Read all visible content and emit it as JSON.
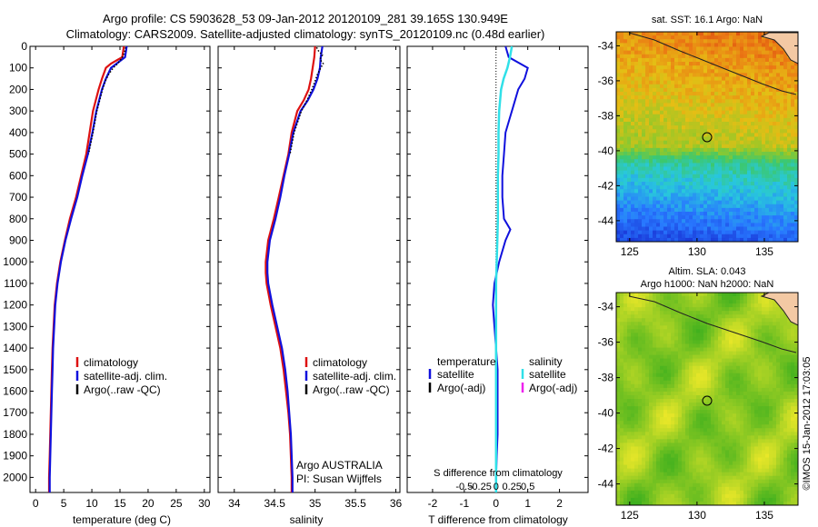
{
  "header": {
    "title_line1": "Argo profile: CS 5903628_53 09-Jan-2012 20120109_281 39.165S 130.949E",
    "title_line2": "Climatology: CARS2009. Satellite-adjusted climatology: synTS_20120109.nc (0.48d earlier)"
  },
  "colors": {
    "climatology": "#dd1111",
    "satellite": "#1010dd",
    "argo": "#000000",
    "sat_salinity": "#30e0e8",
    "argo_adj_salinity": "#ee22ee"
  },
  "depth_axis": {
    "ticks": [
      "0",
      "100",
      "200",
      "300",
      "400",
      "500",
      "600",
      "700",
      "800",
      "900",
      "1000",
      "1100",
      "1200",
      "1300",
      "1400",
      "1500",
      "1600",
      "1700",
      "1800",
      "1900",
      "2000"
    ],
    "range": [
      0,
      2070
    ]
  },
  "panels": {
    "temperature": {
      "xlabel": "temperature (deg C)",
      "xticks": [
        "0",
        "5",
        "10",
        "15",
        "20",
        "25",
        "30"
      ],
      "legend": [
        "climatology",
        "satellite-adj. clim.",
        "Argo(..raw -QC)"
      ]
    },
    "salinity": {
      "xlabel": "salinity",
      "xticks": [
        "34",
        "34.5",
        "35",
        "35.5",
        "36"
      ],
      "legend": [
        "climatology",
        "satellite-adj. clim.",
        "Argo(..raw -QC)"
      ],
      "annotation1": "Argo AUSTRALIA",
      "annotation2": "PI: Susan Wijffels"
    },
    "difference": {
      "xlabel": "T difference from climatology",
      "xticks": [
        "-2",
        "-1",
        "0",
        "1",
        "2"
      ],
      "top_label": "S difference from climatology",
      "top_ticks": [
        "-0.5",
        "-0.25",
        "0",
        "0.25",
        "0.5"
      ],
      "legend_temp_head": "temperature",
      "legend_sal_head": "salinity",
      "legend_temp": [
        "satellite",
        "Argo(-adj)"
      ],
      "legend_sal": [
        "satellite",
        "Argo(-adj)"
      ]
    }
  },
  "maps": {
    "sst": {
      "title": "sat. SST: 16.1 Argo: NaN",
      "yticks": [
        "-34",
        "-36",
        "-38",
        "-40",
        "-42",
        "-44"
      ],
      "xticks": [
        "125",
        "130",
        "135"
      ]
    },
    "sla": {
      "title1": "Altim. SLA: 0.043",
      "title2": "Argo h1000: NaN h2000: NaN",
      "yticks": [
        "-34",
        "-36",
        "-38",
        "-40",
        "-42",
        "-44"
      ],
      "xticks": [
        "125",
        "130",
        "135"
      ]
    },
    "float_position": {
      "lon": 130.949,
      "lat": -39.165
    }
  },
  "credit": "©IMOS 15-Jan-2012 17:03:05",
  "chart_data": [
    {
      "type": "line",
      "panel": "temperature",
      "xlabel": "temperature (deg C)",
      "ylabel": "",
      "xlim": [
        -1,
        31
      ],
      "ylim": [
        2070,
        0
      ],
      "series": [
        {
          "name": "climatology",
          "depth": [
            0,
            50,
            80,
            100,
            150,
            200,
            300,
            400,
            500,
            600,
            700,
            800,
            900,
            1000,
            1100,
            1200,
            1300,
            1400,
            1500,
            1600,
            1700,
            1800,
            1900,
            2000,
            2070
          ],
          "values": [
            15.7,
            15.4,
            13.4,
            12.5,
            11.8,
            11.2,
            10.2,
            9.6,
            9.0,
            8.1,
            7.2,
            6.1,
            5.2,
            4.4,
            3.8,
            3.4,
            3.2,
            3.0,
            2.9,
            2.8,
            2.7,
            2.6,
            2.5,
            2.4,
            2.4
          ]
        },
        {
          "name": "satellite-adj. clim.",
          "depth": [
            0,
            50,
            80,
            100,
            150,
            200,
            300,
            400,
            500,
            600,
            700,
            800,
            900,
            1000,
            1100,
            1200,
            1300,
            1400,
            1500,
            1600,
            1700,
            1800,
            1900,
            2000,
            2070
          ],
          "values": [
            16.2,
            15.9,
            14.4,
            13.4,
            12.5,
            11.8,
            10.8,
            10.1,
            9.3,
            8.3,
            7.4,
            6.3,
            5.3,
            4.5,
            3.9,
            3.5,
            3.3,
            3.1,
            3.0,
            2.9,
            2.8,
            2.7,
            2.6,
            2.5,
            2.5
          ]
        },
        {
          "name": "Argo(..raw -QC)",
          "depth": [
            5,
            20,
            40,
            60,
            80,
            100,
            130,
            160,
            200,
            250,
            300,
            400,
            500
          ],
          "values": [
            16.0,
            15.9,
            15.6,
            15.2,
            14.6,
            13.8,
            13.0,
            12.4,
            11.9,
            11.4,
            10.9,
            10.2,
            9.4
          ]
        }
      ]
    },
    {
      "type": "line",
      "panel": "salinity",
      "xlabel": "salinity",
      "ylabel": "",
      "xlim": [
        33.8,
        36.05
      ],
      "ylim": [
        2070,
        0
      ],
      "series": [
        {
          "name": "climatology",
          "depth": [
            0,
            50,
            100,
            150,
            200,
            250,
            300,
            400,
            500,
            600,
            700,
            800,
            900,
            1000,
            1050,
            1100,
            1200,
            1300,
            1400,
            1500,
            1600,
            1700,
            1800,
            1900,
            2000,
            2070
          ],
          "values": [
            35.0,
            34.99,
            34.97,
            34.95,
            34.92,
            34.86,
            34.78,
            34.71,
            34.67,
            34.61,
            34.55,
            34.49,
            34.42,
            34.39,
            34.39,
            34.4,
            34.45,
            34.51,
            34.57,
            34.61,
            34.64,
            34.67,
            34.69,
            34.7,
            34.71,
            34.71
          ]
        },
        {
          "name": "satellite-adj. clim.",
          "depth": [
            0,
            50,
            100,
            150,
            200,
            250,
            300,
            400,
            500,
            600,
            700,
            800,
            900,
            1000,
            1050,
            1100,
            1200,
            1300,
            1400,
            1500,
            1600,
            1700,
            1800,
            1900,
            2000,
            2070
          ],
          "values": [
            35.09,
            35.07,
            35.06,
            35.03,
            34.98,
            34.91,
            34.82,
            34.73,
            34.68,
            34.62,
            34.57,
            34.51,
            34.44,
            34.41,
            34.41,
            34.42,
            34.47,
            34.53,
            34.59,
            34.63,
            34.66,
            34.68,
            34.7,
            34.71,
            34.72,
            34.72
          ]
        },
        {
          "name": "Argo(..raw -QC)",
          "depth": [
            5,
            20,
            40,
            60,
            80,
            100,
            130,
            160,
            200,
            250,
            300,
            400,
            500
          ],
          "values": [
            35.02,
            35.04,
            35.09,
            35.06,
            35.1,
            35.07,
            35.03,
            35.0,
            34.96,
            34.9,
            34.83,
            34.74,
            34.69
          ]
        }
      ]
    },
    {
      "type": "line",
      "panel": "difference",
      "xlabel": "T difference from climatology",
      "ylabel": "",
      "xlim": [
        -2.8,
        2.9
      ],
      "ylim": [
        2070,
        0
      ],
      "series": [
        {
          "name": "satellite",
          "variable": "temperature",
          "depth": [
            0,
            50,
            100,
            150,
            200,
            250,
            300,
            350,
            400,
            500,
            600,
            700,
            800,
            850,
            900,
            1000,
            1100,
            1200,
            1300,
            1400,
            1500,
            1600,
            1700,
            1800,
            1900,
            2000,
            2070
          ],
          "values": [
            0.3,
            0.4,
            1.0,
            0.9,
            0.7,
            0.6,
            0.5,
            0.4,
            0.3,
            0.25,
            0.2,
            0.2,
            0.25,
            0.45,
            0.3,
            0.1,
            -0.05,
            -0.1,
            -0.05,
            0.0,
            0.05,
            0.05,
            0.05,
            0.05,
            0.02,
            0.0,
            0.0
          ]
        },
        {
          "name": "satellite",
          "variable": "salinity",
          "depth": [
            0,
            50,
            100,
            150,
            200,
            300,
            400,
            500,
            600,
            700,
            800,
            900,
            1000,
            1100,
            1200,
            1400,
            1600,
            1800,
            2000,
            2070
          ],
          "values": [
            0.25,
            0.22,
            0.18,
            0.12,
            0.08,
            0.05,
            0.04,
            0.04,
            0.03,
            0.03,
            0.03,
            0.02,
            0.01,
            0.0,
            0.0,
            0.0,
            0.0,
            0.0,
            0.0,
            0.0
          ]
        }
      ]
    },
    {
      "type": "heatmap",
      "panel": "sst",
      "title": "sat. SST: 16.1 Argo: NaN",
      "xlim": [
        124,
        137.5
      ],
      "ylim": [
        -45.2,
        -33.2
      ]
    },
    {
      "type": "heatmap",
      "panel": "sla",
      "title": "Altim. SLA: 0.043",
      "xlim": [
        124,
        137.5
      ],
      "ylim": [
        -45.2,
        -33.2
      ]
    }
  ]
}
